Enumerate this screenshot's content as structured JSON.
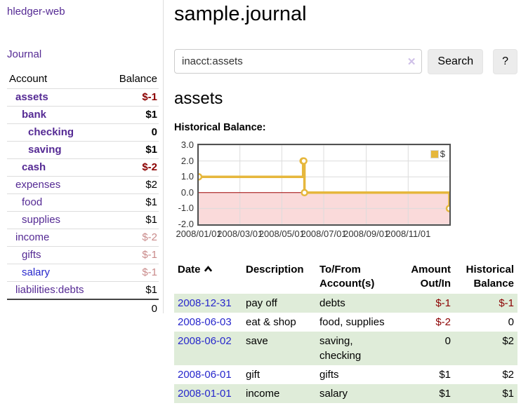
{
  "sidebar": {
    "brand": "hledger-web",
    "journal_link": "Journal",
    "accounts_table": {
      "account_header": "Account",
      "balance_header": "Balance",
      "rows": [
        {
          "label": "assets",
          "level": 1,
          "bold": true,
          "link": "purple",
          "balance": "$-1",
          "amount_class": "neg"
        },
        {
          "label": "bank",
          "level": 2,
          "bold": true,
          "link": "purple",
          "balance": "$1",
          "amount_class": ""
        },
        {
          "label": "checking",
          "level": 3,
          "bold": true,
          "link": "purple",
          "balance": "0",
          "amount_class": ""
        },
        {
          "label": "saving",
          "level": 3,
          "bold": true,
          "link": "purple",
          "balance": "$1",
          "amount_class": ""
        },
        {
          "label": "cash",
          "level": 2,
          "bold": true,
          "link": "purple",
          "balance": "$-2",
          "amount_class": "neg"
        },
        {
          "label": "expenses",
          "level": 1,
          "bold": false,
          "link": "purple",
          "balance": "$2",
          "amount_class": ""
        },
        {
          "label": "food",
          "level": 2,
          "bold": false,
          "link": "purple",
          "balance": "$1",
          "amount_class": ""
        },
        {
          "label": "supplies",
          "level": 2,
          "bold": false,
          "link": "purple",
          "balance": "$1",
          "amount_class": ""
        },
        {
          "label": "income",
          "level": 1,
          "bold": false,
          "link": "purple",
          "balance": "$-2",
          "amount_class": "faded"
        },
        {
          "label": "gifts",
          "level": 2,
          "bold": false,
          "link": "purple",
          "balance": "$-1",
          "amount_class": "faded"
        },
        {
          "label": "salary",
          "level": 2,
          "bold": false,
          "link": "blue",
          "balance": "$-1",
          "amount_class": "faded"
        },
        {
          "label": "liabilities:debts",
          "level": 1,
          "bold": false,
          "link": "purple",
          "balance": "$1",
          "amount_class": ""
        }
      ],
      "total": "0"
    }
  },
  "header": {
    "title": "sample.journal"
  },
  "search": {
    "value": "inacct:assets",
    "clear_icon": "✕",
    "search_button": "Search",
    "help_button": "?"
  },
  "content": {
    "account_heading": "assets",
    "chart_label": "Historical Balance:"
  },
  "chart_data": {
    "type": "line",
    "title": "Historical Balance of assets",
    "x_range": [
      "2008-01-01",
      "2008-12-31"
    ],
    "ylim": [
      -2,
      3
    ],
    "y_ticks": [
      3,
      2,
      1,
      0,
      -1,
      -2
    ],
    "x_ticks": [
      "2008/01/01",
      "2008/03/01",
      "2008/05/01",
      "2008/07/01",
      "2008/09/01",
      "2008/11/01"
    ],
    "x_tick_dates": [
      "2008-01-01",
      "2008-03-01",
      "2008-05-01",
      "2008-07-01",
      "2008-09-01",
      "2008-11-01"
    ],
    "grid": true,
    "grid_color": "#dcdcdc",
    "zero_line_color": "#9e0000",
    "negative_fill": "#fadada",
    "legend_position": "top-right",
    "legend": [
      {
        "label": "$",
        "color": "#e6b73c"
      }
    ],
    "series": [
      {
        "name": "$",
        "color": "#e6b73c",
        "step": true,
        "points": [
          [
            "2008-01-01",
            1
          ],
          [
            "2008-06-01",
            2
          ],
          [
            "2008-06-02",
            2
          ],
          [
            "2008-06-03",
            0
          ],
          [
            "2008-12-31",
            -1
          ]
        ]
      }
    ]
  },
  "transactions": {
    "headers": [
      "Date",
      "Description",
      "To/From Account(s)",
      "Amount Out/In",
      "Historical Balance"
    ],
    "sort_column": "Date",
    "sort_direction": "ascending",
    "rows": [
      {
        "date": "2008-12-31",
        "description": "pay off",
        "accounts": "debts",
        "amount": "$-1",
        "amount_class": "neg",
        "balance": "$-1",
        "balance_class": "neg",
        "shaded": true
      },
      {
        "date": "2008-06-03",
        "description": "eat & shop",
        "accounts": "food, supplies",
        "amount": "$-2",
        "amount_class": "neg",
        "balance": "0",
        "balance_class": "",
        "shaded": false
      },
      {
        "date": "2008-06-02",
        "description": "save",
        "accounts": "saving, checking",
        "amount": "0",
        "amount_class": "",
        "balance": "$2",
        "balance_class": "",
        "shaded": true
      },
      {
        "date": "2008-06-01",
        "description": "gift",
        "accounts": "gifts",
        "amount": "$1",
        "amount_class": "",
        "balance": "$2",
        "balance_class": "",
        "shaded": false
      },
      {
        "date": "2008-01-01",
        "description": "income",
        "accounts": "salary",
        "amount": "$1",
        "amount_class": "",
        "balance": "$1",
        "balance_class": "",
        "shaded": true
      }
    ]
  },
  "colors": {
    "link_purple": "#552a94",
    "link_blue": "#2727cc",
    "negative_amount": "#8b0000",
    "faded_negative": "#c98a8a",
    "row_green": "#dfecd9",
    "chart_gold": "#e6b73c",
    "chart_negative_fill": "#fadada",
    "chart_zero_line": "#9e0000"
  }
}
